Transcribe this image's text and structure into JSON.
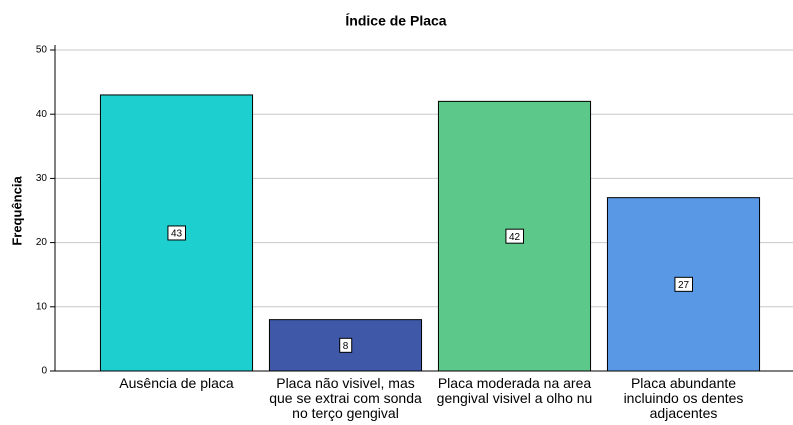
{
  "chart_data": {
    "type": "bar",
    "title": "Índice de Placa",
    "y_label": "Frequência",
    "categories": [
      "Ausência de placa",
      "Placa não visivel, mas que se extrai com sonda no terço gengival",
      "Placa moderada na area gengival visivel a olho nu",
      "Placa abundante incluindo os dentes adjacentes"
    ],
    "values": [
      43,
      8,
      42,
      27
    ],
    "colors": [
      "#1ecfcf",
      "#3f58a8",
      "#5cc98a",
      "#5898e4"
    ],
    "ylim": [
      0,
      50
    ],
    "yticks": [
      0,
      10,
      20,
      30,
      40,
      50
    ],
    "grid": true
  }
}
